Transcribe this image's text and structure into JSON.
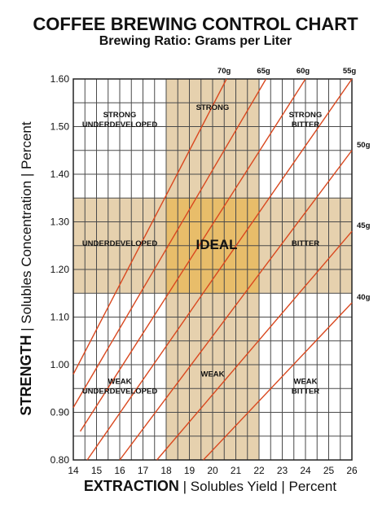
{
  "chart_data": {
    "type": "line",
    "title": "COFFEE BREWING CONTROL CHART",
    "subtitle": "Brewing Ratio: Grams per Liter",
    "xlabel": {
      "bold": "EXTRACTION",
      "rest": "Solubles Yield",
      "unit": "Percent"
    },
    "ylabel": {
      "bold": "STRENGTH",
      "rest": "Solubles Concentration",
      "unit": "Percent"
    },
    "xlim": [
      14,
      26
    ],
    "ylim": [
      0.8,
      1.6
    ],
    "x_ticks": [
      "14",
      "15",
      "16",
      "17",
      "18",
      "19",
      "20",
      "21",
      "22",
      "23",
      "24",
      "25",
      "26"
    ],
    "y_ticks": [
      "0.80",
      "0.90",
      "1.00",
      "1.10",
      "1.20",
      "1.30",
      "1.40",
      "1.50",
      "1.60"
    ],
    "grid": true,
    "ideal_extraction": [
      18,
      22
    ],
    "ideal_strength": [
      1.15,
      1.35
    ],
    "series": [
      {
        "name": "70g",
        "points": [
          [
            14,
            0.98
          ],
          [
            20.6,
            1.6
          ]
        ]
      },
      {
        "name": "65g",
        "points": [
          [
            14,
            0.91
          ],
          [
            22.3,
            1.6
          ]
        ]
      },
      {
        "name": "60g",
        "points": [
          [
            14.3,
            0.86
          ],
          [
            24,
            1.6
          ]
        ]
      },
      {
        "name": "55g",
        "points": [
          [
            14.6,
            0.8
          ],
          [
            26,
            1.6
          ]
        ]
      },
      {
        "name": "50g",
        "points": [
          [
            16,
            0.8
          ],
          [
            26,
            1.45
          ]
        ]
      },
      {
        "name": "45g",
        "points": [
          [
            17.6,
            0.8
          ],
          [
            26,
            1.28
          ]
        ]
      },
      {
        "name": "40g",
        "points": [
          [
            19.6,
            0.8
          ],
          [
            26,
            1.13
          ]
        ]
      }
    ],
    "zones": [
      {
        "lines": [
          "STRONG",
          "UNDERDEVELOPED"
        ],
        "x": 16,
        "y": 1.52
      },
      {
        "lines": [
          "STRONG"
        ],
        "x": 20,
        "y": 1.535
      },
      {
        "lines": [
          "STRONG",
          "BITTER"
        ],
        "x": 24,
        "y": 1.52
      },
      {
        "lines": [
          "UNDERDEVELOPED"
        ],
        "x": 16,
        "y": 1.25
      },
      {
        "lines": [
          "BITTER"
        ],
        "x": 24,
        "y": 1.25
      },
      {
        "lines": [
          "WEAK",
          "UNDERDEVELOPED"
        ],
        "x": 16,
        "y": 0.96
      },
      {
        "lines": [
          "WEAK"
        ],
        "x": 20,
        "y": 0.975
      },
      {
        "lines": [
          "WEAK",
          "BITTER"
        ],
        "x": 24,
        "y": 0.96
      }
    ],
    "ideal_label": "IDEAL",
    "colors": {
      "band": "#e6d1ae",
      "ideal": "#e8bd6a",
      "grid": "#4a4a4a",
      "line": "#d9481f",
      "text": "#111111"
    }
  }
}
